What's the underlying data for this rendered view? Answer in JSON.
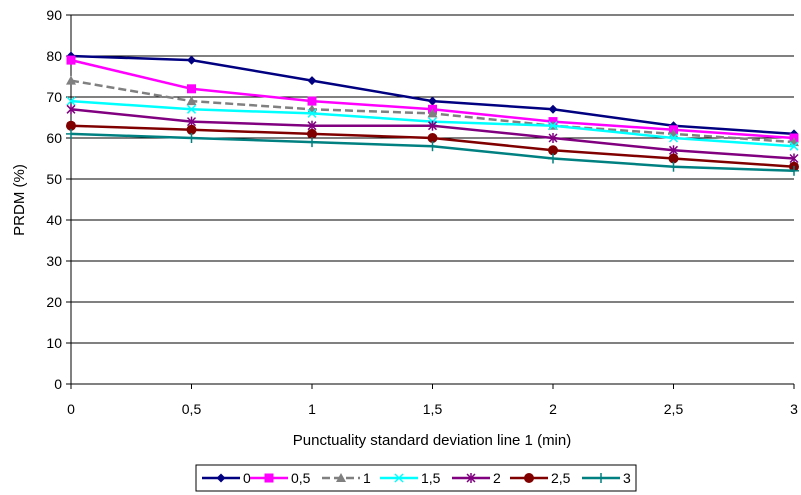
{
  "chart_data": {
    "type": "line",
    "title": "",
    "xlabel": "Punctuality standard deviation line 1 (min)",
    "ylabel": "PRDM (%)",
    "x_categories": [
      "0",
      "0,5",
      "1",
      "1,5",
      "2",
      "2,5",
      "3"
    ],
    "y_ticks": [
      "0",
      "10",
      "20",
      "30",
      "40",
      "50",
      "60",
      "70",
      "80",
      "90"
    ],
    "ylim": [
      0,
      90
    ],
    "grid": "horizontal",
    "legend_position": "bottom",
    "series": [
      {
        "name": "0",
        "color": "#000080",
        "marker": "diamond",
        "dash": "solid",
        "values": [
          80,
          79,
          74,
          69,
          67,
          63,
          61
        ]
      },
      {
        "name": "0,5",
        "color": "#ff00ff",
        "marker": "square",
        "dash": "solid",
        "values": [
          79,
          72,
          69,
          67,
          64,
          62,
          60
        ]
      },
      {
        "name": "1",
        "color": "#808080",
        "marker": "triangle",
        "dash": "dashed",
        "values": [
          74,
          69,
          67,
          66,
          63,
          61,
          59
        ]
      },
      {
        "name": "1,5",
        "color": "#00ffff",
        "marker": "x",
        "dash": "solid",
        "values": [
          69,
          67,
          66,
          64,
          63,
          60,
          58
        ]
      },
      {
        "name": "2",
        "color": "#800080",
        "marker": "star",
        "dash": "solid",
        "values": [
          67,
          64,
          63,
          63,
          60,
          57,
          55
        ]
      },
      {
        "name": "2,5",
        "color": "#800000",
        "marker": "circle",
        "dash": "solid",
        "values": [
          63,
          62,
          61,
          60,
          57,
          55,
          53
        ]
      },
      {
        "name": "3",
        "color": "#008080",
        "marker": "plus",
        "dash": "solid",
        "values": [
          61,
          60,
          59,
          58,
          55,
          53,
          52
        ]
      }
    ]
  }
}
